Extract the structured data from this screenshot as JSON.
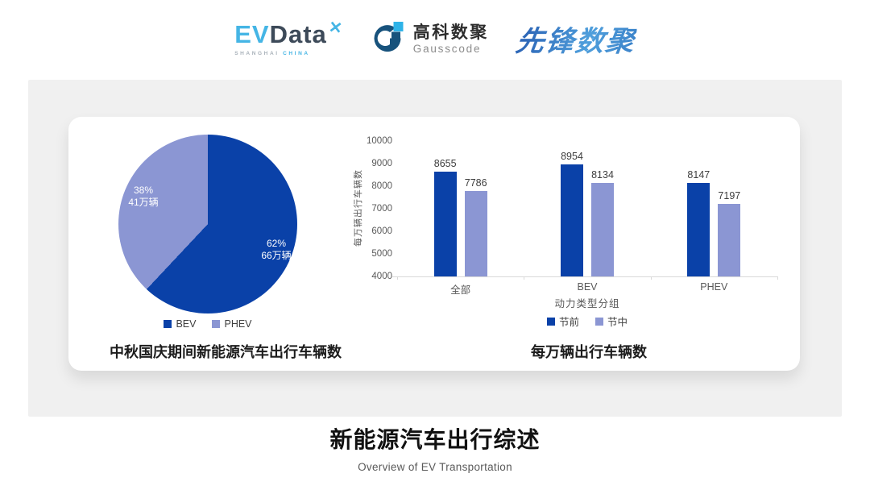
{
  "header": {
    "evdata": {
      "ev": "EV",
      "data": "Data",
      "star": "✕",
      "sub_left": "SHANGHAI",
      "sub_right": "CHINA"
    },
    "gausscode": {
      "cn": "高科数聚",
      "en": "Gausscode"
    },
    "pioneer": {
      "text": "先锋数聚"
    }
  },
  "colors": {
    "primary": "#0a41a8",
    "secondary": "#8b96d3",
    "panel": "#f0f0f0",
    "axis_text": "#595959",
    "value_text": "#3d3d3d",
    "gauss_navy": "#17527c",
    "gauss_cyan": "#2eb3e8",
    "evdata_blue": "#45b5e5"
  },
  "chart_data": [
    {
      "type": "pie",
      "title": "中秋国庆期间新能源汽车出行车辆数",
      "legend_position": "bottom",
      "slices": [
        {
          "label": "BEV",
          "percent": 62,
          "pct_label": "62%",
          "value_label": "66万辆",
          "color": "#0a41a8"
        },
        {
          "label": "PHEV",
          "percent": 38,
          "pct_label": "38%",
          "value_label": "41万辆",
          "color": "#8b96d3"
        }
      ]
    },
    {
      "type": "bar",
      "title": "每万辆出行车辆数",
      "ylabel": "每万辆出行车辆数",
      "xlabel": "动力类型分组",
      "categories": [
        "全部",
        "BEV",
        "PHEV"
      ],
      "series": [
        {
          "name": "节前",
          "color": "#0a41a8",
          "values": [
            8655,
            8954,
            8147
          ]
        },
        {
          "name": "节中",
          "color": "#8b96d3",
          "values": [
            7786,
            8134,
            7197
          ]
        }
      ],
      "ylim": [
        4000,
        10000
      ],
      "ytick_step": 1000,
      "grid": false,
      "legend_position": "bottom"
    }
  ],
  "footer": {
    "title": "新能源汽车出行综述",
    "subtitle": "Overview of EV Transportation"
  }
}
